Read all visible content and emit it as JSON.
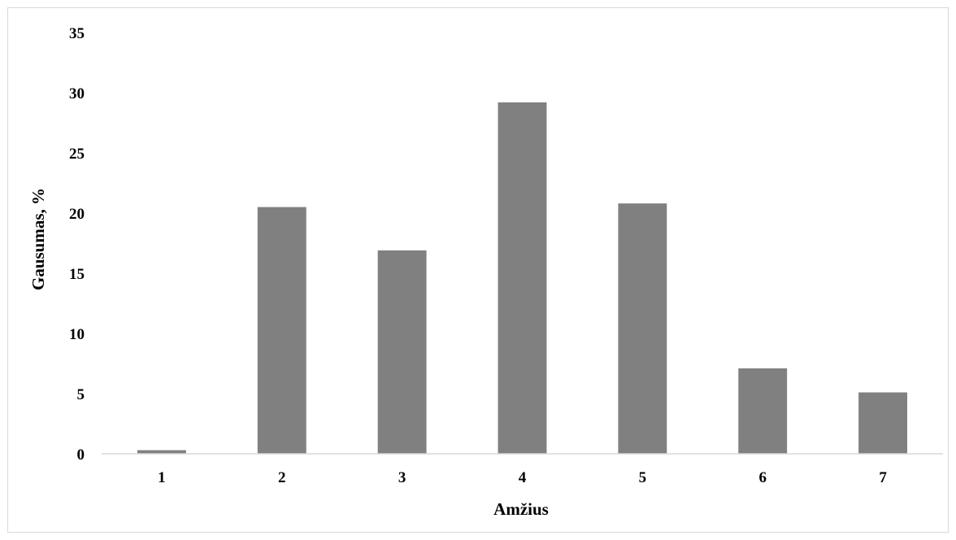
{
  "chart_data": {
    "type": "bar",
    "categories": [
      "1",
      "2",
      "3",
      "4",
      "5",
      "6",
      "7"
    ],
    "values": [
      0.3,
      20.5,
      16.9,
      29.2,
      20.8,
      7.1,
      5.1
    ],
    "title": "",
    "xlabel": "Amžius",
    "ylabel": "Gausumas, %",
    "ylim": [
      0,
      35
    ],
    "yticks": [
      "0",
      "5",
      "10",
      "15",
      "20",
      "25",
      "30",
      "35"
    ],
    "grid": false,
    "legend": "none",
    "bar_color": "#808080",
    "axis_color": "#d9d9d9"
  }
}
